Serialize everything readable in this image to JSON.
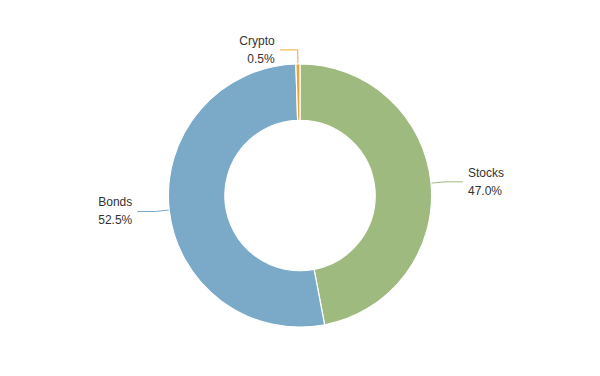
{
  "chart_data": {
    "type": "pie",
    "categories": [
      "Stocks",
      "Bonds",
      "Crypto"
    ],
    "values": [
      47.0,
      52.5,
      0.5
    ],
    "value_labels": [
      "47.0%",
      "52.5%",
      "0.5%"
    ],
    "colors": [
      "#9eba7e",
      "#7aaac8",
      "#e8a838"
    ],
    "data_labels": true
  }
}
